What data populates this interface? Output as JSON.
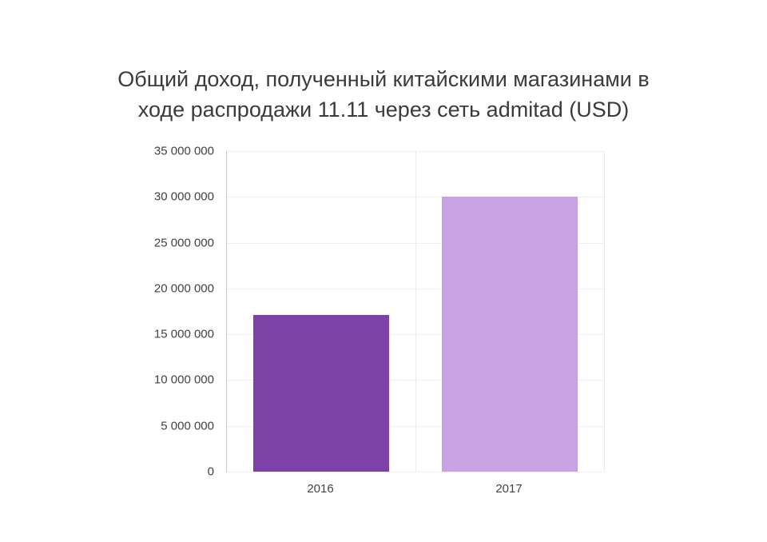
{
  "chart_data": {
    "type": "bar",
    "title": "Общий доход, полученный китайскими магазинами в ходе распродажи 11.11 через сеть admitad (USD)",
    "title_lines": [
      "Общий доход, полученный китайскими магазинами в",
      "ходе распродажи 11.11 через сеть admitad (USD)"
    ],
    "categories": [
      "2016",
      "2017"
    ],
    "values": [
      17100000,
      30000000
    ],
    "bar_colors": [
      "#7c42a7",
      "#c9a2e3"
    ],
    "ylim": [
      0,
      35000000
    ],
    "yticks": [
      {
        "value": 0,
        "label": "0"
      },
      {
        "value": 5000000,
        "label": "5 000 000"
      },
      {
        "value": 10000000,
        "label": "10 000 000"
      },
      {
        "value": 15000000,
        "label": "15 000 000"
      },
      {
        "value": 20000000,
        "label": "20 000 000"
      },
      {
        "value": 25000000,
        "label": "25 000 000"
      },
      {
        "value": 30000000,
        "label": "30 000 000"
      },
      {
        "value": 35000000,
        "label": "35 000 000"
      }
    ],
    "xlabel": "",
    "ylabel": "",
    "grid": true,
    "legend": false
  }
}
